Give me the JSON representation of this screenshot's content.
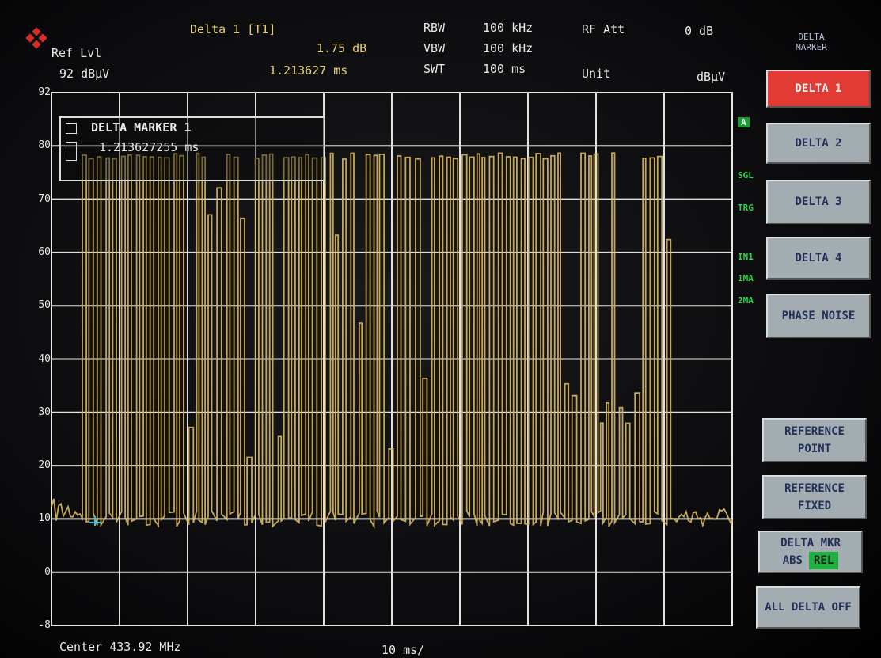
{
  "header": {
    "marker_name": "Delta 1 [T1]",
    "marker_level": "1.75 dB",
    "marker_time": "1.213627 ms",
    "ref_label": "Ref Lvl",
    "ref_value": "92 dBµV",
    "rbw_label": "RBW",
    "rbw_value": "100 kHz",
    "vbw_label": "VBW",
    "vbw_value": "100 kHz",
    "swt_label": "SWT",
    "swt_value": "100 ms",
    "rf_att_label": "RF Att",
    "rf_att_value": "0 dB",
    "unit_label": "Unit",
    "unit_value": "dBµV"
  },
  "y_axis_labels": [
    "92",
    "80",
    "70",
    "60",
    "50",
    "40",
    "30",
    "20",
    "10",
    "0",
    "-8"
  ],
  "marker_box": {
    "title": "DELTA MARKER 1",
    "value": "1.213627255 ms"
  },
  "indicators": [
    "A",
    "SGL",
    "TRG",
    "IN1",
    "1MA",
    "2MA"
  ],
  "softkeys": {
    "title": "DELTA MARKER",
    "buttons": [
      "DELTA 1",
      "DELTA 2",
      "DELTA 3",
      "DELTA 4",
      "PHASE NOISE",
      "REFERENCE POINT",
      "REFERENCE FIXED",
      "DELTA MKR",
      "ALL DELTA OFF"
    ],
    "abs": "ABS",
    "rel": "REL"
  },
  "footer": {
    "center": "Center 433.92 MHz",
    "span": "10 ms/"
  }
}
